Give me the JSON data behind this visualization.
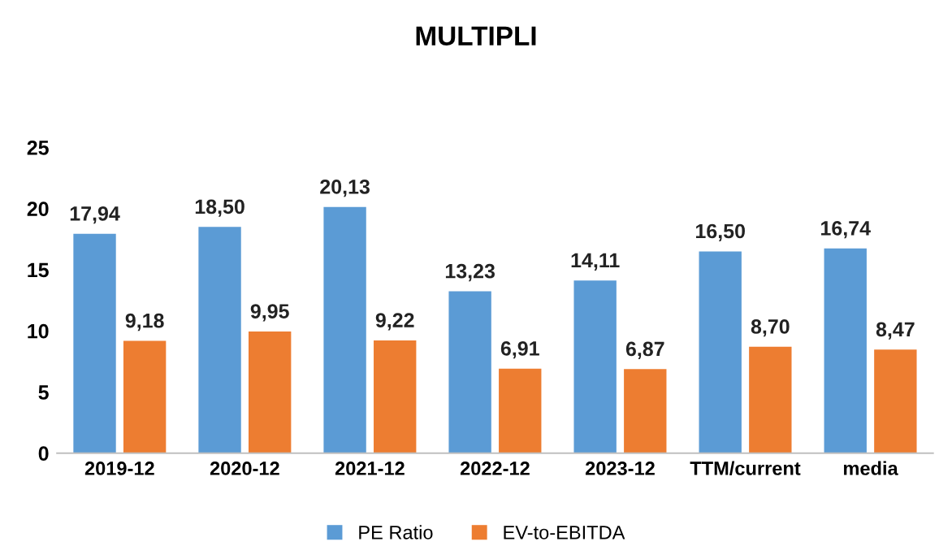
{
  "chart_data": {
    "type": "bar",
    "title": "MULTIPLI",
    "categories": [
      "2019-12",
      "2020-12",
      "2021-12",
      "2022-12",
      "2023-12",
      "TTM/current",
      "media"
    ],
    "series": [
      {
        "name": "PE Ratio",
        "color": "#5b9bd5",
        "values": [
          17.94,
          18.5,
          20.13,
          13.23,
          14.11,
          16.5,
          16.74
        ],
        "value_labels": [
          "17,94",
          "18,50",
          "20,13",
          "13,23",
          "14,11",
          "16,50",
          "16,74"
        ]
      },
      {
        "name": "EV-to-EBITDA",
        "color": "#ed7d31",
        "values": [
          9.18,
          9.95,
          9.22,
          6.91,
          6.87,
          8.7,
          8.47
        ],
        "value_labels": [
          "9,18",
          "9,95",
          "9,22",
          "6,91",
          "6,87",
          "8,70",
          "8,47"
        ]
      }
    ],
    "ylim": [
      0,
      25
    ],
    "yticks": [
      0,
      5,
      10,
      15,
      20,
      25
    ],
    "grid": false,
    "legend": "bottom"
  }
}
